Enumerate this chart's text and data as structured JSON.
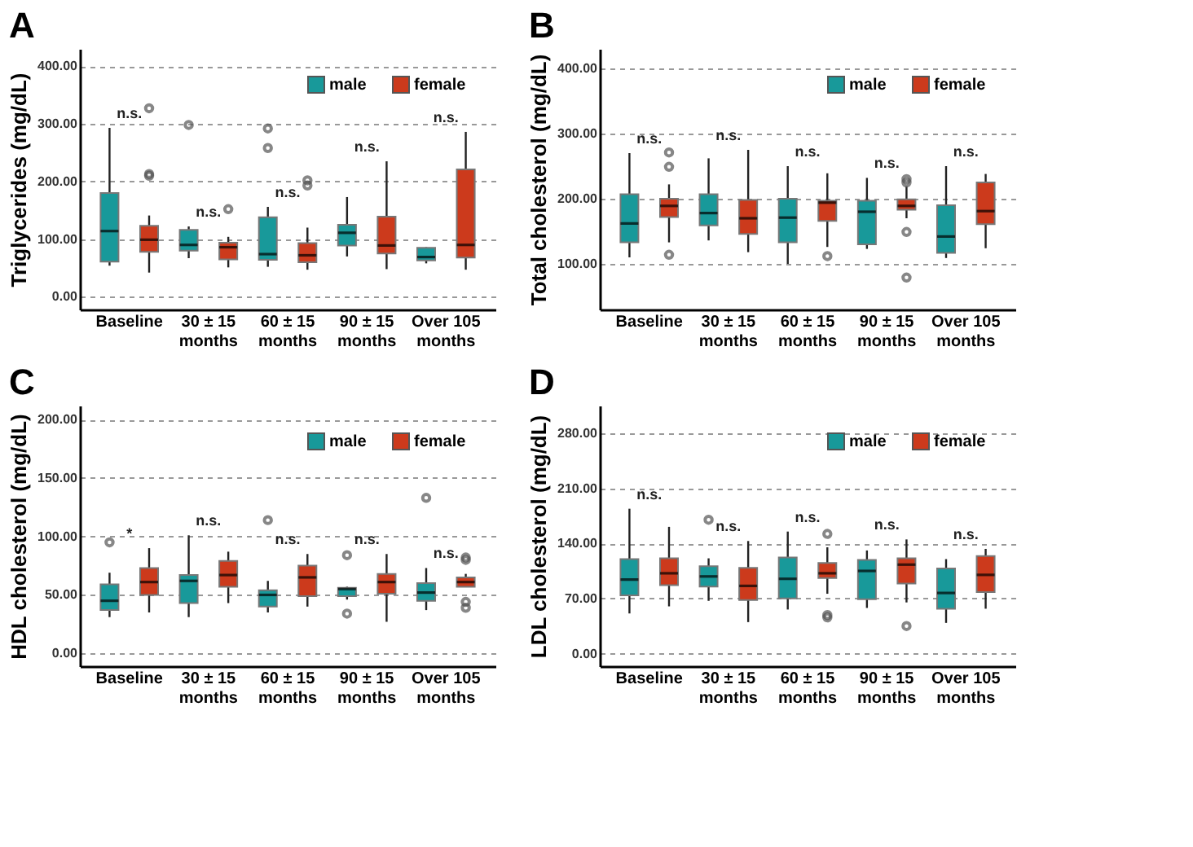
{
  "chart_data": [
    {
      "type": "box",
      "title": "A",
      "ylabel": "Triglycerides (mg/dL)",
      "categories": [
        "Baseline",
        "30 ± 15\nmonths",
        "60 ± 15\nmonths",
        "90 ± 15\nmonths",
        "Over 105\nmonths"
      ],
      "ylim": [
        -22,
        430
      ],
      "yticks": [
        {
          "value": 0,
          "label": "0.00"
        },
        {
          "value": 100,
          "label": "100.00"
        },
        {
          "value": 200,
          "label": "200.00"
        },
        {
          "value": 300,
          "label": "300.00"
        },
        {
          "value": 400,
          "label": "400.00"
        }
      ],
      "grid": "y",
      "legend": "top right",
      "series": [
        {
          "name": "male",
          "color": "#18999a",
          "boxes": [
            {
              "low": 54,
              "q1": 61,
              "median": 114,
              "q3": 180,
              "high": 293
            },
            {
              "low": 67,
              "q1": 80,
              "median": 90,
              "q3": 116,
              "high": 122,
              "outliers": [
                298
              ]
            },
            {
              "low": 52,
              "q1": 64,
              "median": 74,
              "q3": 138,
              "high": 156,
              "outliers": [
                258,
                292
              ]
            },
            {
              "low": 70,
              "q1": 89,
              "median": 111,
              "q3": 125,
              "high": 173
            },
            {
              "low": 58,
              "q1": 63,
              "median": 69,
              "q3": 85,
              "high": 86
            }
          ]
        },
        {
          "name": "female",
          "color": "#cc3a1c",
          "boxes": [
            {
              "low": 42,
              "q1": 78,
              "median": 99,
              "q3": 123,
              "high": 141,
              "outliers": [
                210,
                213,
                327
              ]
            },
            {
              "low": 51,
              "q1": 65,
              "median": 86,
              "q3": 94,
              "high": 104,
              "outliers": [
                152
              ]
            },
            {
              "low": 47,
              "q1": 60,
              "median": 72,
              "q3": 93,
              "high": 120,
              "outliers": [
                193,
                202
              ]
            },
            {
              "low": 48,
              "q1": 75,
              "median": 89,
              "q3": 139,
              "high": 235
            },
            {
              "low": 47,
              "q1": 68,
              "median": 90,
              "q3": 221,
              "high": 286
            }
          ]
        }
      ],
      "annotations": [
        "n.s.",
        "n.s.",
        "n.s.",
        "n.s.",
        "n.s."
      ]
    },
    {
      "type": "box",
      "title": "B",
      "ylabel": "Total cholesterol (mg/dL)",
      "categories": [
        "Baseline",
        "30 ± 15\nmonths",
        "60 ± 15\nmonths",
        "90 ± 15\nmonths",
        "Over 105\nmonths"
      ],
      "ylim": [
        30,
        430
      ],
      "yticks": [
        {
          "value": 100,
          "label": "100.00"
        },
        {
          "value": 200,
          "label": "200.00"
        },
        {
          "value": 300,
          "label": "300.00"
        },
        {
          "value": 400,
          "label": "400.00"
        }
      ],
      "grid": "y",
      "legend": "top right",
      "series": [
        {
          "name": "male",
          "color": "#18999a",
          "boxes": [
            {
              "low": 110,
              "q1": 133,
              "median": 162,
              "q3": 207,
              "high": 270
            },
            {
              "low": 136,
              "q1": 159,
              "median": 178,
              "q3": 207,
              "high": 262
            },
            {
              "low": 100,
              "q1": 133,
              "median": 171,
              "q3": 200,
              "high": 250
            },
            {
              "low": 123,
              "q1": 130,
              "median": 180,
              "q3": 197,
              "high": 232
            },
            {
              "low": 109,
              "q1": 117,
              "median": 142,
              "q3": 190,
              "high": 250
            }
          ]
        },
        {
          "name": "female",
          "color": "#cc3a1c",
          "boxes": [
            {
              "low": 133,
              "q1": 172,
              "median": 189,
              "q3": 200,
              "high": 222,
              "outliers": [
                114,
                249,
                271
              ]
            },
            {
              "low": 118,
              "q1": 146,
              "median": 170,
              "q3": 198,
              "high": 275
            },
            {
              "low": 126,
              "q1": 166,
              "median": 194,
              "q3": 197,
              "high": 239,
              "outliers": [
                112
              ]
            },
            {
              "low": 170,
              "q1": 183,
              "median": 189,
              "q3": 199,
              "high": 219,
              "outliers": [
                79,
                149,
                225,
                230
              ]
            },
            {
              "low": 124,
              "q1": 161,
              "median": 181,
              "q3": 225,
              "high": 238
            }
          ]
        }
      ],
      "annotations": [
        "n.s.",
        "n.s.",
        "n.s.",
        "n.s.",
        "n.s."
      ]
    },
    {
      "type": "box",
      "title": "C",
      "ylabel": "HDL cholesterol (mg/dL)",
      "categories": [
        "Baseline",
        "30 ± 15\nmonths",
        "60 ± 15\nmonths",
        "90 ± 15\nmonths",
        "Over 105\nmonths"
      ],
      "ylim": [
        -11,
        212
      ],
      "yticks": [
        {
          "value": 0,
          "label": "0.00"
        },
        {
          "value": 50,
          "label": "50.00"
        },
        {
          "value": 100,
          "label": "100.00"
        },
        {
          "value": 150,
          "label": "150.00"
        },
        {
          "value": 200,
          "label": "200.00"
        }
      ],
      "grid": "y",
      "legend": "top right",
      "series": [
        {
          "name": "male",
          "color": "#18999a",
          "boxes": [
            {
              "low": 31,
              "q1": 37,
              "median": 45,
              "q3": 59,
              "high": 69,
              "outliers": [
                95
              ]
            },
            {
              "low": 31,
              "q1": 43,
              "median": 62,
              "q3": 67,
              "high": 101
            },
            {
              "low": 35,
              "q1": 40,
              "median": 50,
              "q3": 54,
              "high": 62,
              "outliers": [
                114
              ]
            },
            {
              "low": 46,
              "q1": 49,
              "median": 55,
              "q3": 56,
              "high": 57,
              "outliers": [
                34,
                84
              ]
            },
            {
              "low": 37,
              "q1": 45,
              "median": 52,
              "q3": 60,
              "high": 73,
              "outliers": [
                133
              ]
            }
          ]
        },
        {
          "name": "female",
          "color": "#cc3a1c",
          "boxes": [
            {
              "low": 35,
              "q1": 50,
              "median": 61,
              "q3": 73,
              "high": 90
            },
            {
              "low": 43,
              "q1": 57,
              "median": 67,
              "q3": 79,
              "high": 87
            },
            {
              "low": 40,
              "q1": 49,
              "median": 65,
              "q3": 75,
              "high": 85
            },
            {
              "low": 27,
              "q1": 51,
              "median": 61,
              "q3": 68,
              "high": 85
            },
            {
              "low": 57,
              "q1": 57,
              "median": 61,
              "q3": 65,
              "high": 68,
              "outliers": [
                39,
                44,
                80,
                82
              ]
            }
          ]
        }
      ],
      "annotations": [
        "*",
        "n.s.",
        "n.s.",
        "n.s.",
        "n.s."
      ]
    },
    {
      "type": "box",
      "title": "D",
      "ylabel": "LDL cholesterol (mg/dL)",
      "categories": [
        "Baseline",
        "30 ± 15\nmonths",
        "60 ± 15\nmonths",
        "90 ± 15\nmonths",
        "Over 105\nmonths"
      ],
      "ylim": [
        -16,
        315
      ],
      "yticks": [
        {
          "value": 0,
          "label": "0.00"
        },
        {
          "value": 70,
          "label": "70.00"
        },
        {
          "value": 140,
          "label": "140.00"
        },
        {
          "value": 210,
          "label": "210.00"
        },
        {
          "value": 280,
          "label": "280.00"
        }
      ],
      "grid": "y",
      "legend": "top right",
      "series": [
        {
          "name": "male",
          "color": "#18999a",
          "boxes": [
            {
              "low": 51,
              "q1": 74,
              "median": 94,
              "q3": 120,
              "high": 184
            },
            {
              "low": 67,
              "q1": 85,
              "median": 98,
              "q3": 111,
              "high": 121,
              "outliers": [
                170
              ]
            },
            {
              "low": 56,
              "q1": 70,
              "median": 95,
              "q3": 122,
              "high": 155
            },
            {
              "low": 58,
              "q1": 69,
              "median": 105,
              "q3": 119,
              "high": 131
            },
            {
              "low": 39,
              "q1": 57,
              "median": 77,
              "q3": 108,
              "high": 120
            }
          ]
        },
        {
          "name": "female",
          "color": "#cc3a1c",
          "boxes": [
            {
              "low": 60,
              "q1": 87,
              "median": 102,
              "q3": 121,
              "high": 161
            },
            {
              "low": 40,
              "q1": 68,
              "median": 86,
              "q3": 109,
              "high": 143
            },
            {
              "low": 76,
              "q1": 96,
              "median": 102,
              "q3": 115,
              "high": 135,
              "outliers": [
                46,
                49,
                152
              ]
            },
            {
              "low": 65,
              "q1": 89,
              "median": 113,
              "q3": 121,
              "high": 145,
              "outliers": [
                35
              ]
            },
            {
              "low": 57,
              "q1": 78,
              "median": 100,
              "q3": 124,
              "high": 133
            }
          ]
        }
      ],
      "annotations": [
        "n.s.",
        "n.s.",
        "n.s.",
        "n.s.",
        "n.s."
      ]
    }
  ]
}
